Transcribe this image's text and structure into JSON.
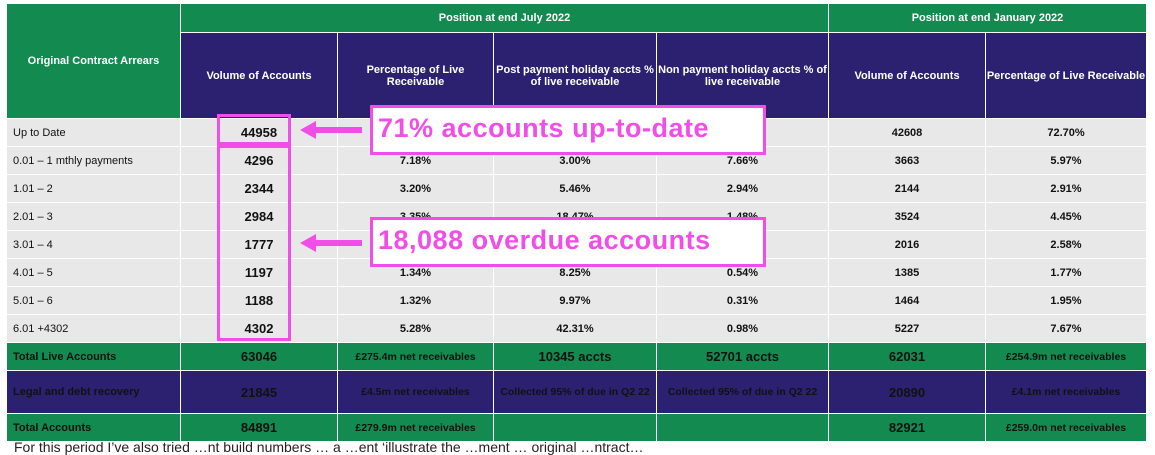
{
  "headers": {
    "row_label": "Original Contract Arrears",
    "group_july": "Position at end July 2022",
    "group_jan": "Position at end January 2022",
    "col_volume": "Volume of Accounts",
    "col_pct_live": "Percentage of Live Receivable",
    "col_post_holiday": "Post payment holiday accts % of live receivable",
    "col_non_holiday": "Non payment holiday accts % of live receivable",
    "col_volume_jan": "Volume of Accounts",
    "col_pct_live_jan": "Percentage of Live Receivable"
  },
  "rows": [
    {
      "label": "Up to Date",
      "vol": "44958",
      "pct": "",
      "post": "",
      "non": "%",
      "vol_jan": "42608",
      "pct_jan": "72.70%"
    },
    {
      "label": "0.01 – 1 mthly payments",
      "vol": "4296",
      "pct": "7.18%",
      "post": "3.00%",
      "non": "7.66%",
      "vol_jan": "3663",
      "pct_jan": "5.97%"
    },
    {
      "label": "1.01 – 2",
      "vol": "2344",
      "pct": "3.20%",
      "post": "5.46%",
      "non": "2.94%",
      "vol_jan": "2144",
      "pct_jan": "2.91%"
    },
    {
      "label": "2.01 – 3",
      "vol": "2984",
      "pct": "3.35%",
      "post": "18.47%",
      "non": "1.48%",
      "vol_jan": "3524",
      "pct_jan": "4.45%"
    },
    {
      "label": "3.01 – 4",
      "vol": "1777",
      "pct": "",
      "post": "",
      "non": "",
      "vol_jan": "2016",
      "pct_jan": "2.58%"
    },
    {
      "label": "4.01 – 5",
      "vol": "1197",
      "pct": "1.34%",
      "post": "8.25%",
      "non": "0.54%",
      "vol_jan": "1385",
      "pct_jan": "1.77%"
    },
    {
      "label": "5.01 – 6",
      "vol": "1188",
      "pct": "1.32%",
      "post": "9.97%",
      "non": "0.31%",
      "vol_jan": "1464",
      "pct_jan": "1.95%"
    },
    {
      "label": "6.01 +4302",
      "vol": "4302",
      "pct": "5.28%",
      "post": "42.31%",
      "non": "0.98%",
      "vol_jan": "5227",
      "pct_jan": "7.67%"
    }
  ],
  "totals": {
    "live": {
      "label": "Total  Live Accounts",
      "vol": "63046",
      "pct": "£275.4m net receivables",
      "post": "10345 accts",
      "non": "52701 accts",
      "vol_jan": "62031",
      "pct_jan": "£254.9m net receivables"
    },
    "legal": {
      "label": "Legal and debt recovery",
      "vol": "21845",
      "pct": "£4.5m net receivables",
      "post": "Collected 95% of due in Q2 22",
      "non": "Collected 95% of due in Q2  22",
      "vol_jan": "20890",
      "pct_jan": "£4.1m net receivables"
    },
    "total": {
      "label": "Total  Accounts",
      "vol": "84891",
      "pct": "£279.9m net receivables",
      "post": "",
      "non": "",
      "vol_jan": "82921",
      "pct_jan": "£259.0m net receivables"
    }
  },
  "annotations": {
    "uptodate": "71% accounts up-to-date",
    "overdue": "18,088 overdue accounts"
  },
  "footer": "For this period I’ve also tried …nt build numbers … a …ent ‘illustrate the …ment … original …ntract…",
  "colors": {
    "green": "#138a4f",
    "blue": "#2b2170",
    "highlight": "#f04ee6",
    "row_bg": "#e8e8e8"
  }
}
